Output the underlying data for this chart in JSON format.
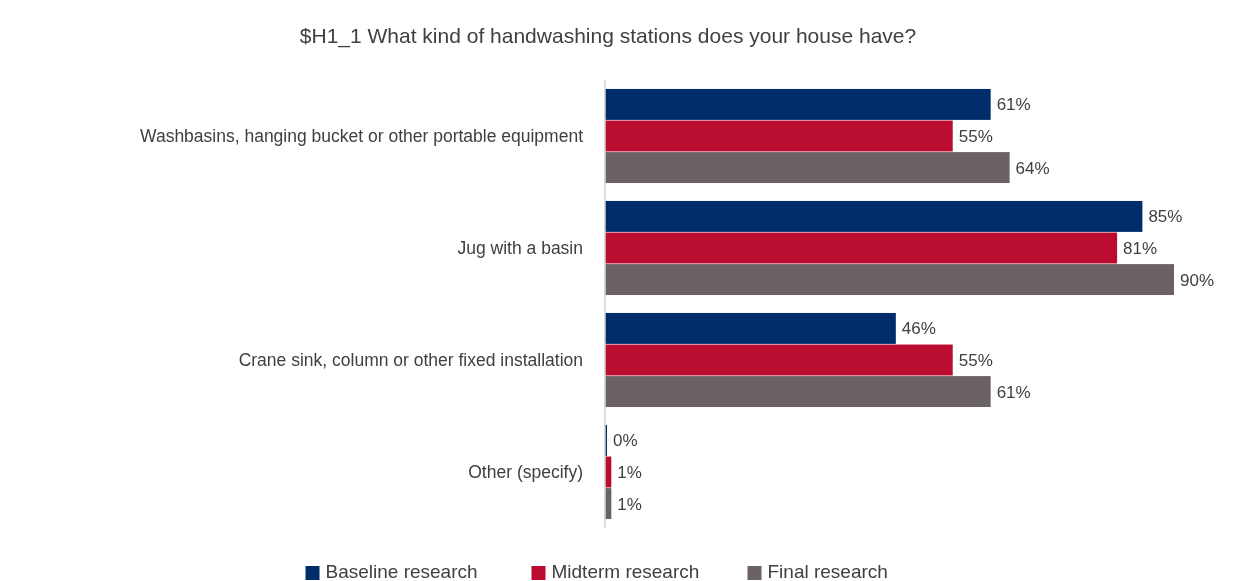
{
  "chart_data": {
    "type": "bar",
    "orientation": "horizontal",
    "title": "$H1_1 What kind of handwashing stations does your house have?",
    "categories": [
      "Washbasins, hanging bucket or other portable equipment",
      "Jug with a basin",
      "Crane sink, column or other fixed installation",
      "Other (specify)"
    ],
    "series": [
      {
        "name": "Baseline research",
        "color": "#002d6a",
        "values": [
          61,
          85,
          46,
          0
        ],
        "value_labels": [
          "61%",
          "85%",
          "46%",
          "0%"
        ]
      },
      {
        "name": "Midterm research",
        "color": "#b90c2f",
        "values": [
          55,
          81,
          55,
          1
        ],
        "value_labels": [
          "55%",
          "81%",
          "55%",
          "1%"
        ]
      },
      {
        "name": "Final research",
        "color": "#6b6363",
        "values": [
          64,
          90,
          61,
          1
        ],
        "value_labels": [
          "64%",
          "90%",
          "61%",
          "1%"
        ]
      }
    ],
    "legend": "bottom"
  }
}
